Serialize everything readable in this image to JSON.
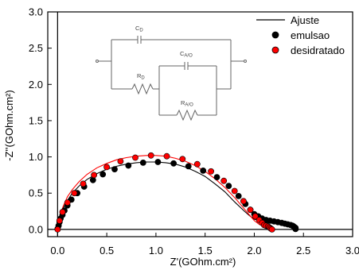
{
  "chart_data": {
    "type": "scatter",
    "xlabel": "Z'(GOhm.cm²)",
    "ylabel": "-Z''(GOhm.cm²)",
    "xlim": [
      -0.1,
      3.0
    ],
    "ylim": [
      -0.1,
      3.0
    ],
    "xticks": [
      "0.0",
      "0.5",
      "1.0",
      "1.5",
      "2.0",
      "2.5",
      "3.0"
    ],
    "yticks": [
      "0.0",
      "0.5",
      "1.0",
      "1.5",
      "2.0",
      "2.5",
      "3.0"
    ],
    "legend_position": "top-right",
    "reference_lines": [
      {
        "axis": "x",
        "value": 0
      },
      {
        "axis": "y",
        "value": 0
      }
    ],
    "series": [
      {
        "name": "Ajuste",
        "kind": "line",
        "color": "#000000",
        "x": [
          0.0,
          0.01,
          0.03,
          0.06,
          0.1,
          0.15,
          0.22,
          0.3,
          0.4,
          0.5,
          0.6,
          0.7,
          0.8,
          0.9,
          1.0,
          1.1,
          1.2,
          1.3,
          1.4,
          1.5,
          1.6,
          1.7,
          1.8,
          1.9,
          1.95,
          2.0,
          2.05,
          2.1,
          2.2,
          2.3,
          2.37,
          2.4,
          2.42,
          2.42
        ],
        "y": [
          0.0,
          0.1,
          0.2,
          0.3,
          0.4,
          0.5,
          0.6,
          0.69,
          0.77,
          0.83,
          0.87,
          0.9,
          0.92,
          0.93,
          0.93,
          0.92,
          0.9,
          0.86,
          0.8,
          0.73,
          0.63,
          0.52,
          0.38,
          0.25,
          0.19,
          0.14,
          0.12,
          0.1,
          0.08,
          0.06,
          0.04,
          0.03,
          0.015,
          0.0
        ]
      },
      {
        "name": "Ajuste",
        "kind": "line",
        "color": "#ff0000",
        "x": [
          0.0,
          0.01,
          0.03,
          0.06,
          0.1,
          0.15,
          0.22,
          0.3,
          0.4,
          0.5,
          0.6,
          0.7,
          0.8,
          0.9,
          1.0,
          1.1,
          1.2,
          1.3,
          1.4,
          1.5,
          1.6,
          1.7,
          1.8,
          1.9,
          1.95,
          2.0,
          2.05,
          2.1,
          2.15,
          2.18,
          2.2
        ],
        "y": [
          0.0,
          0.11,
          0.22,
          0.33,
          0.45,
          0.55,
          0.66,
          0.76,
          0.85,
          0.91,
          0.96,
          0.99,
          1.01,
          1.02,
          1.02,
          1.01,
          0.98,
          0.94,
          0.88,
          0.8,
          0.7,
          0.58,
          0.44,
          0.28,
          0.2,
          0.12,
          0.07,
          0.04,
          0.02,
          0.01,
          0.0
        ]
      },
      {
        "name": "emulsao",
        "kind": "scatter",
        "color": "#000000",
        "x": [
          0.0,
          0.01,
          0.02,
          0.03,
          0.05,
          0.07,
          0.1,
          0.14,
          0.2,
          0.27,
          0.36,
          0.46,
          0.58,
          0.72,
          0.87,
          1.02,
          1.18,
          1.33,
          1.48,
          1.62,
          1.74,
          1.84,
          1.91,
          1.96,
          2.0,
          2.04,
          2.08,
          2.12,
          2.16,
          2.2,
          2.24,
          2.28,
          2.31,
          2.34,
          2.37,
          2.39,
          2.4,
          2.41,
          2.42,
          2.42
        ],
        "y": [
          0.01,
          0.05,
          0.1,
          0.15,
          0.2,
          0.26,
          0.33,
          0.41,
          0.5,
          0.59,
          0.68,
          0.76,
          0.83,
          0.88,
          0.92,
          0.93,
          0.91,
          0.87,
          0.81,
          0.72,
          0.6,
          0.46,
          0.35,
          0.27,
          0.21,
          0.18,
          0.15,
          0.13,
          0.12,
          0.11,
          0.1,
          0.09,
          0.08,
          0.07,
          0.06,
          0.05,
          0.04,
          0.03,
          0.02,
          0.005
        ]
      },
      {
        "name": "desidratado",
        "kind": "scatter",
        "color": "#ff0000",
        "x": [
          0.0,
          0.02,
          0.05,
          0.1,
          0.17,
          0.26,
          0.37,
          0.5,
          0.64,
          0.79,
          0.95,
          1.11,
          1.27,
          1.42,
          1.56,
          1.69,
          1.8,
          1.89,
          1.96,
          2.01,
          2.05,
          2.08,
          2.1,
          2.12,
          2.14,
          2.15,
          2.16,
          2.17,
          2.18
        ],
        "y": [
          0.0,
          0.12,
          0.24,
          0.37,
          0.5,
          0.63,
          0.75,
          0.86,
          0.94,
          0.99,
          1.02,
          1.01,
          0.97,
          0.9,
          0.8,
          0.67,
          0.53,
          0.39,
          0.27,
          0.18,
          0.13,
          0.09,
          0.06,
          0.05,
          0.04,
          0.03,
          0.02,
          0.01,
          0.0
        ]
      }
    ]
  },
  "inset": {
    "labels": {
      "cd": {
        "main": "C",
        "sub": "D"
      },
      "cao": {
        "main": "C",
        "sub": "A/O"
      },
      "rd": {
        "main": "R",
        "sub": "D"
      },
      "rao": {
        "main": "R",
        "sub": "A/O"
      }
    }
  }
}
